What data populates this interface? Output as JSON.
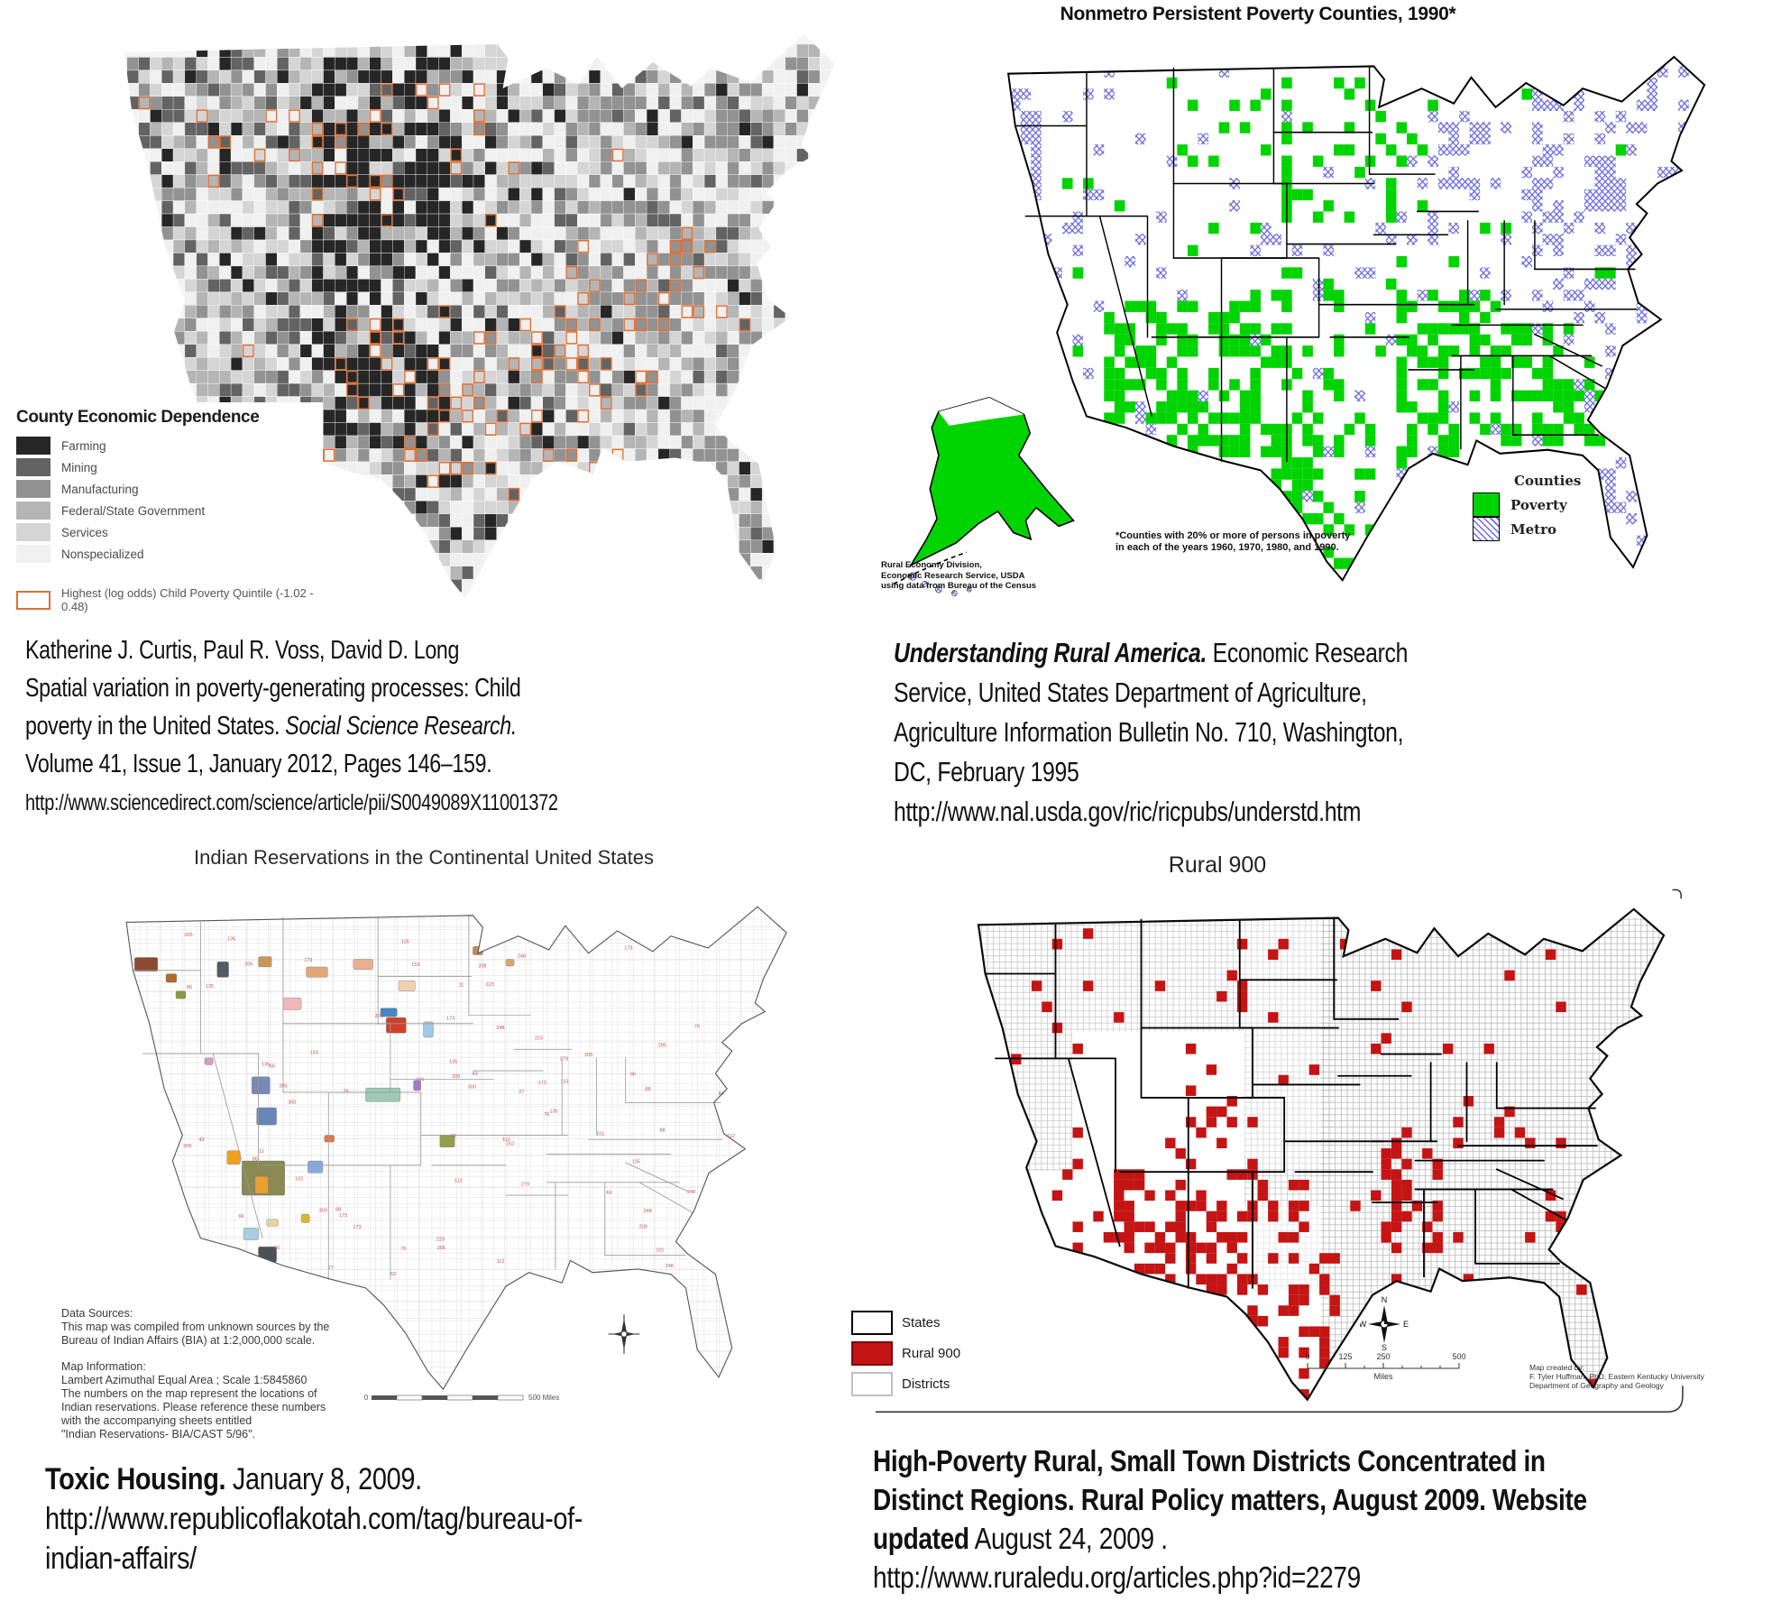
{
  "palette": {
    "orange": "#df7036",
    "green": "#00d400",
    "metro_blue": "#6b6bdc",
    "red": "#c41414",
    "grays": [
      "#262626",
      "#636363",
      "#929292",
      "#b5b5b5",
      "#d5d5d5",
      "#f0f0f0"
    ]
  },
  "q1": {
    "legend": {
      "title": "County Economic Dependence",
      "items": [
        {
          "label": "Farming",
          "color": "#262626"
        },
        {
          "label": "Mining",
          "color": "#636363"
        },
        {
          "label": "Manufacturing",
          "color": "#929292"
        },
        {
          "label": "Federal/State Government",
          "color": "#b5b5b5"
        },
        {
          "label": "Services",
          "color": "#d5d5d5"
        },
        {
          "label": "Nonspecialized",
          "color": "#f0f0f0"
        }
      ],
      "overlay": {
        "label": "Highest (log odds) Child Poverty Quintile (-1.02 - 0.48)",
        "color": "#df7036"
      }
    },
    "citation": {
      "lines": [
        [
          {
            "text": "Katherine J. Curtis, Paul R. Voss, David D. Long"
          }
        ],
        [
          {
            "text": "Spatial variation in poverty-generating processes: Child"
          }
        ],
        [
          {
            "text": "poverty in the United States.  "
          },
          {
            "text": "Social Science Research.",
            "italic": true
          }
        ],
        [
          {
            "text": "Volume 41, Issue 1, January 2012, Pages 146–159."
          }
        ],
        [
          {
            "text": "http://www.sciencedirect.com/science/article/pii/S0049089X11001372",
            "small": true
          }
        ]
      ]
    }
  },
  "q2": {
    "title": "Nonmetro Persistent Poverty Counties, 1990*",
    "legend": {
      "title": "Counties",
      "items": [
        {
          "label": "Poverty",
          "color": "#00d400",
          "pattern": "solid"
        },
        {
          "label": "Metro",
          "color": "#6b6bdc",
          "pattern": "crosshatch"
        }
      ]
    },
    "footnote": {
      "lines": [
        "*Counties with 20% or more of persons in poverty",
        "in each of the years 1960, 1970, 1980, and 1990."
      ]
    },
    "credits": {
      "lines": [
        "Rural Economy Division,",
        "Economic Research Service, USDA",
        "using data from Bureau of the Census"
      ]
    },
    "citation": {
      "lines": [
        [
          {
            "text": "Understanding Rural America.",
            "bold": true,
            "italic": true
          },
          {
            "text": "  Economic Research"
          }
        ],
        [
          {
            "text": "Service, United States Department of Agriculture,"
          }
        ],
        [
          {
            "text": "Agriculture Information Bulletin No. 710,  Washington,"
          }
        ],
        [
          {
            "text": "DC, February 1995"
          }
        ],
        [
          {
            "text": "http://www.nal.usda.gov/ric/ricpubs/understd.htm"
          }
        ]
      ]
    }
  },
  "q3": {
    "title": "Indian Reservations in the Continental United States",
    "notes": {
      "data_sources": [
        "Data Sources:",
        "This map was compiled from unknown sources by the",
        "Bureau of Indian Affairs (BIA) at 1:2,000,000 scale."
      ],
      "map_information": [
        "Map Information:",
        "Lambert Azimuthal Equal Area ; Scale 1:5845860",
        "The numbers on the map represent the locations of",
        "Indian reservations. Please reference these numbers",
        "with the accompanying sheets entitled",
        "\"Indian Reservations- BIA/CAST 5/96\"."
      ]
    },
    "scale": {
      "left": "0",
      "right": "500 Miles"
    },
    "reservation_numbers": [
      "173",
      "205",
      "84",
      "76",
      "63",
      "112",
      "248",
      "300",
      "196",
      "43",
      "27",
      "88",
      "66",
      "153",
      "223",
      "262",
      "11",
      "101",
      "96",
      "173",
      "205",
      "135",
      "162",
      "279",
      "208"
    ],
    "citation": {
      "lines": [
        [
          {
            "text": "Toxic Housing.",
            "bold": true
          },
          {
            "text": "  January 8, 2009."
          }
        ],
        [
          {
            "text": "http://www.republicoflakotah.com/tag/bureau-of-"
          }
        ],
        [
          {
            "text": "indian-affairs/"
          }
        ]
      ]
    }
  },
  "q4": {
    "title": "Rural 900",
    "legend": {
      "items": [
        {
          "label": "States",
          "fill": "#ffffff",
          "border": "#000000"
        },
        {
          "label": "Rural 900",
          "fill": "#c41414",
          "border": "#7a0c0c"
        },
        {
          "label": "Districts",
          "fill": "#ffffff",
          "border": "#c0c0c0"
        }
      ]
    },
    "compass": {
      "n": "N",
      "e": "E",
      "s": "S",
      "w": "W"
    },
    "scale": {
      "ticks": [
        "0",
        "125",
        "250",
        "500"
      ],
      "unit": "Miles"
    },
    "credits": {
      "lines": [
        "Map created by:",
        "F. Tyler Huffman, PhD,  Eastern Kentucky University",
        "Department of Geography and Geology"
      ]
    },
    "citation": {
      "lines": [
        [
          {
            "text": "High-Poverty Rural, Small Town Districts Concentrated in",
            "bold": true
          }
        ],
        [
          {
            "text": "Distinct Regions.  Rural Policy matters, August 2009.  Website",
            "bold": true
          }
        ],
        [
          {
            "text": "updated",
            "bold": true
          },
          {
            "text": " August 24, 2009 ."
          }
        ],
        [
          {
            "text": "http://www.ruraledu.org/articles.php?id=2279"
          }
        ]
      ]
    }
  }
}
